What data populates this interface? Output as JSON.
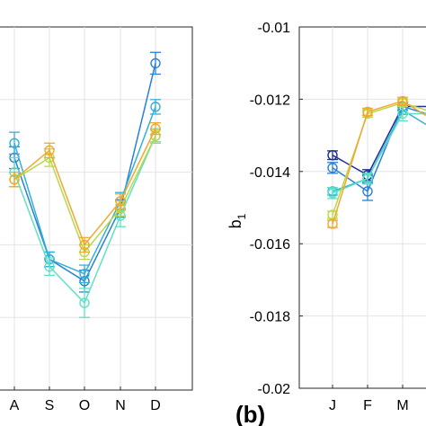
{
  "chart_data": [
    {
      "panel": "a",
      "type": "line",
      "categories": [
        "A",
        "S",
        "O",
        "N",
        "D"
      ],
      "grid": true,
      "series": [
        {
          "color": "#2a7fd4",
          "values": [
            -1.8,
            -3.2,
            -3.5,
            -2.5,
            -0.5
          ],
          "errors": [
            0.15,
            0.1,
            0.15,
            0.12,
            0.15
          ]
        },
        {
          "color": "#33b0d8",
          "values": [
            -1.6,
            -3.2,
            -3.4,
            -2.4,
            -1.1
          ],
          "errors": [
            0.15,
            0.1,
            0.12,
            0.12,
            0.1
          ]
        },
        {
          "color": "#5fe0c4",
          "values": [
            -2.0,
            -3.3,
            -3.8,
            -2.6,
            -1.5
          ],
          "errors": [
            0.2,
            0.12,
            0.2,
            0.15,
            0.1
          ]
        },
        {
          "color": "#b8d84a",
          "values": [
            -2.1,
            -1.8,
            -3.1,
            -2.5,
            -1.5
          ],
          "errors": [
            0.1,
            0.12,
            0.1,
            0.1,
            0.08
          ]
        },
        {
          "color": "#f0a830",
          "values": [
            -2.1,
            -1.7,
            -3.0,
            -2.4,
            -1.4
          ],
          "errors": [
            0.1,
            0.1,
            0.1,
            0.1,
            0.08
          ]
        }
      ]
    },
    {
      "panel": "b",
      "label": "(b)",
      "type": "line",
      "ylabel": "b",
      "ylabel_sub": "1",
      "categories": [
        "J",
        "F",
        "M"
      ],
      "yticks": [
        "-0.01",
        "-0.012",
        "-0.014",
        "-0.016",
        "-0.018",
        "-0.02"
      ],
      "ylim": [
        -0.02,
        -0.01
      ],
      "grid": true,
      "series": [
        {
          "color": "#1e2b9a",
          "values": [
            -0.01355,
            -0.0141,
            -0.0122
          ],
          "errors": [
            0.00012,
            0.00015,
            0.0001
          ]
        },
        {
          "color": "#2a7fd4",
          "values": [
            -0.0139,
            -0.01455,
            -0.0122
          ],
          "errors": [
            0.00015,
            0.00025,
            0.0001
          ]
        },
        {
          "color": "#33b0d8",
          "values": [
            -0.01455,
            -0.0142,
            -0.0123
          ],
          "errors": [
            0.0001,
            0.00012,
            0.00012
          ]
        },
        {
          "color": "#5fe0c4",
          "values": [
            -0.0146,
            -0.0142,
            -0.0124
          ],
          "errors": [
            0.00015,
            0.00015,
            0.0002
          ]
        },
        {
          "color": "#b8d84a",
          "values": [
            -0.0152,
            -0.0124,
            -0.0121
          ],
          "errors": [
            0.0001,
            0.0001,
            0.0001
          ]
        },
        {
          "color": "#f0a830",
          "values": [
            -0.01545,
            -0.01235,
            -0.01205
          ],
          "errors": [
            0.0001,
            0.0001,
            0.0001
          ]
        }
      ]
    }
  ]
}
